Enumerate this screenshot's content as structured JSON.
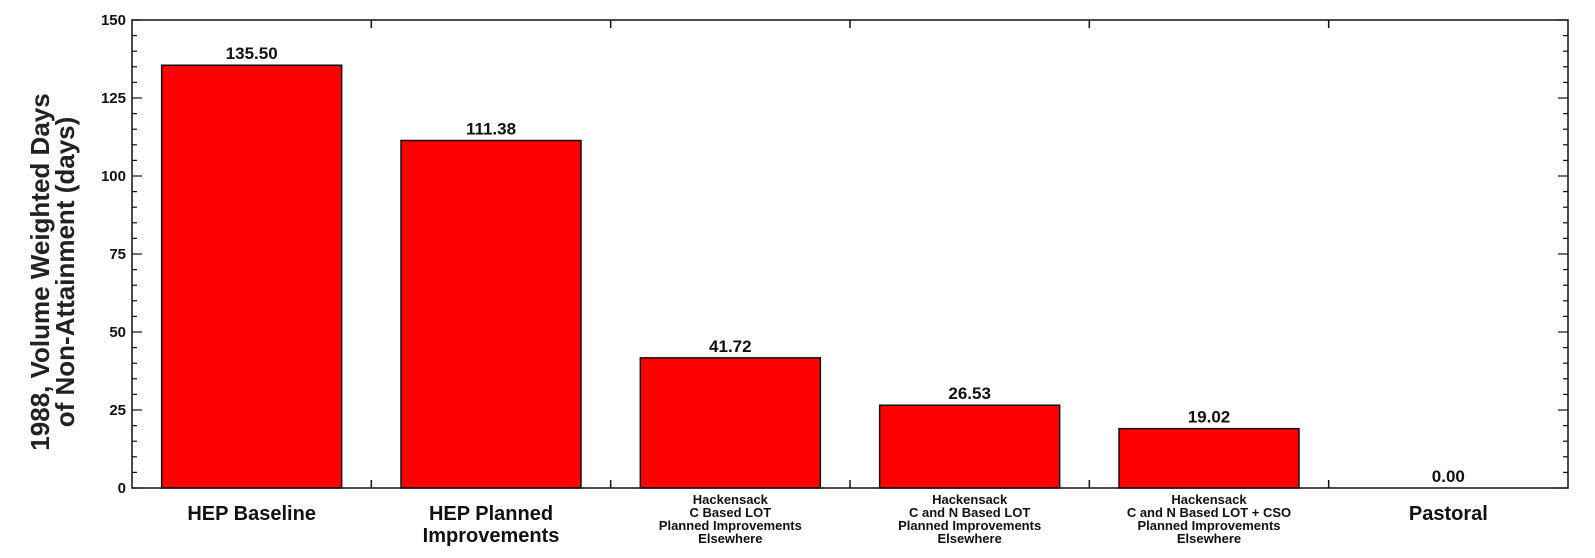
{
  "chart_data": {
    "type": "bar",
    "title": "",
    "xlabel": "",
    "ylabel": [
      "1988, Volume Weighted Days",
      "of Non-Attainment (days)"
    ],
    "ylim": [
      0,
      150
    ],
    "yticks": [
      0,
      25,
      50,
      75,
      100,
      125,
      150
    ],
    "grid": false,
    "bar_color": "#ff0000",
    "categories": [
      [
        "HEP Baseline"
      ],
      [
        "HEP Planned",
        "Improvements"
      ],
      [
        "Hackensack",
        "C Based LOT",
        "Planned Improvements",
        "Elsewhere"
      ],
      [
        "Hackensack",
        "C and N Based LOT",
        "Planned Improvements",
        "Elsewhere"
      ],
      [
        "Hackensack",
        "C and N Based LOT + CSO",
        "Planned Improvements",
        "Elsewhere"
      ],
      [
        "Pastoral"
      ]
    ],
    "values": [
      135.5,
      111.38,
      41.72,
      26.53,
      19.02,
      0.0
    ],
    "value_labels": [
      "135.50",
      "111.38",
      "41.72",
      "26.53",
      "19.02",
      "0.00"
    ]
  }
}
